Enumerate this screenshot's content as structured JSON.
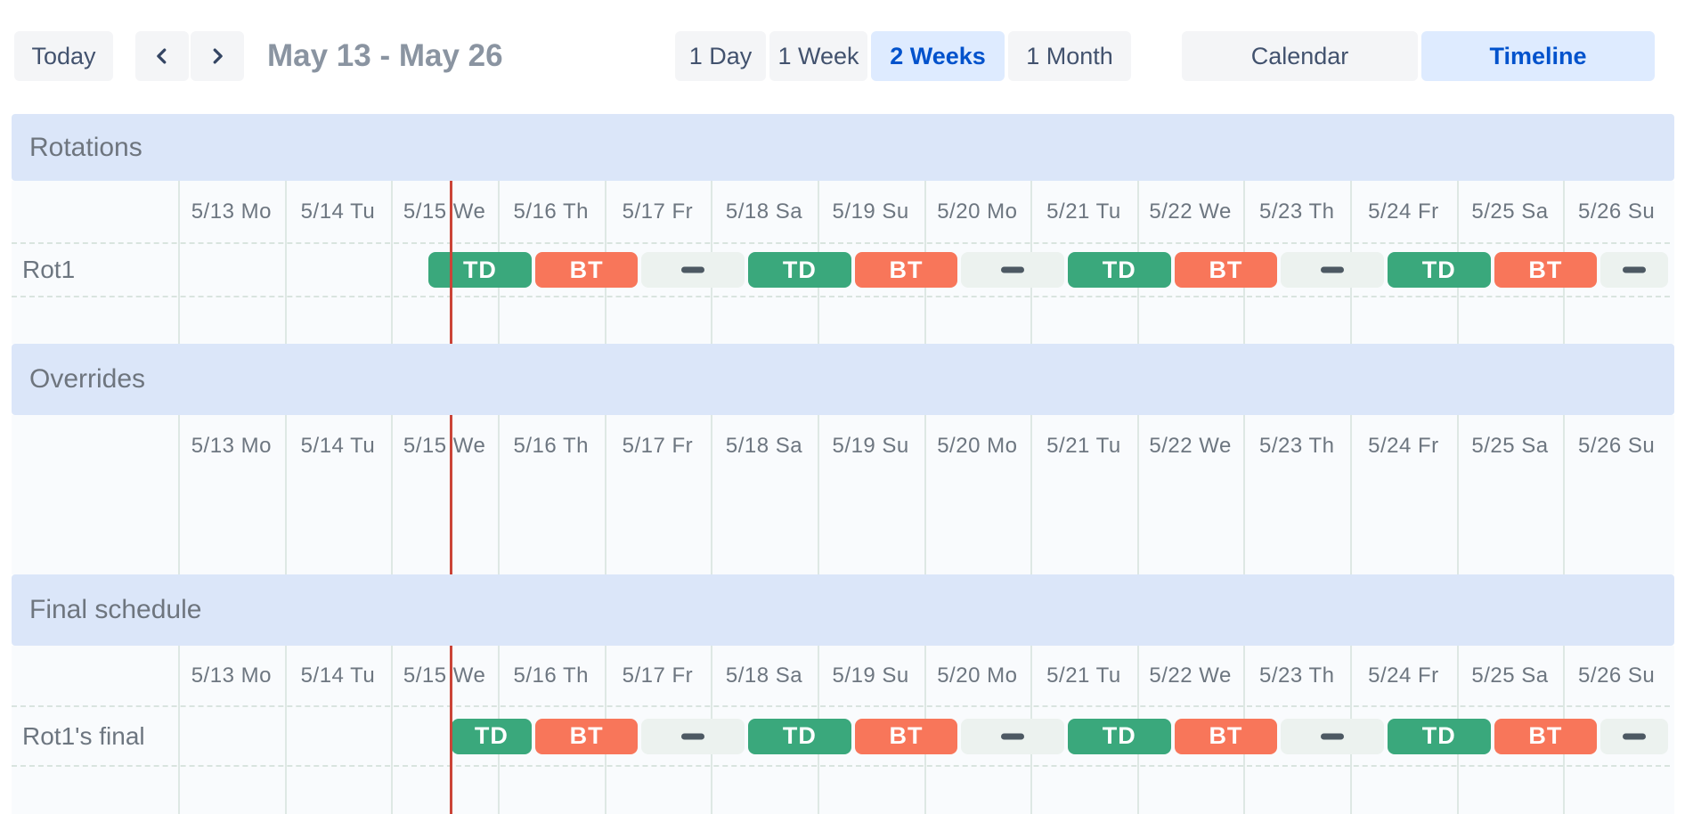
{
  "toolbar": {
    "today_label": "Today",
    "date_range": "May 13 - May 26",
    "view_options": [
      {
        "label": "1 Day",
        "selected": false
      },
      {
        "label": "1 Week",
        "selected": false
      },
      {
        "label": "2 Weeks",
        "selected": true
      },
      {
        "label": "1 Month",
        "selected": false
      }
    ],
    "mode_options": [
      {
        "label": "Calendar",
        "selected": false
      },
      {
        "label": "Timeline",
        "selected": true
      }
    ]
  },
  "timeline": {
    "days": [
      "5/13 Mo",
      "5/14 Tu",
      "5/15 We",
      "5/16 Th",
      "5/17 Fr",
      "5/18 Sa",
      "5/19 Su",
      "5/20 Mo",
      "5/21 Tu",
      "5/22 We",
      "5/23 Th",
      "5/24 Fr",
      "5/25 Sa",
      "5/26 Su"
    ],
    "total_days": 14,
    "now_marker_day": 2.55,
    "sections": [
      {
        "title": "Rotations",
        "rows": [
          {
            "label": "Rot1",
            "shifts": [
              {
                "type": "shift",
                "label": "TD",
                "color": "green",
                "start": 2.333,
                "end": 3.333
              },
              {
                "type": "shift",
                "label": "BT",
                "color": "orange",
                "start": 3.333,
                "end": 4.333
              },
              {
                "type": "gap",
                "start": 4.333,
                "end": 5.333
              },
              {
                "type": "shift",
                "label": "TD",
                "color": "green",
                "start": 5.333,
                "end": 6.333
              },
              {
                "type": "shift",
                "label": "BT",
                "color": "orange",
                "start": 6.333,
                "end": 7.333
              },
              {
                "type": "gap",
                "start": 7.333,
                "end": 8.333
              },
              {
                "type": "shift",
                "label": "TD",
                "color": "green",
                "start": 8.333,
                "end": 9.333
              },
              {
                "type": "shift",
                "label": "BT",
                "color": "orange",
                "start": 9.333,
                "end": 10.333
              },
              {
                "type": "gap",
                "start": 10.333,
                "end": 11.333
              },
              {
                "type": "shift",
                "label": "TD",
                "color": "green",
                "start": 11.333,
                "end": 12.333
              },
              {
                "type": "shift",
                "label": "BT",
                "color": "orange",
                "start": 12.333,
                "end": 13.333
              },
              {
                "type": "gap",
                "start": 13.333,
                "end": 14
              }
            ]
          }
        ]
      },
      {
        "title": "Overrides",
        "rows": []
      },
      {
        "title": "Final schedule",
        "rows": [
          {
            "label": "Rot1's final",
            "shifts": [
              {
                "type": "shift",
                "label": "TD",
                "color": "green",
                "start": 2.55,
                "end": 3.333
              },
              {
                "type": "shift",
                "label": "BT",
                "color": "orange",
                "start": 3.333,
                "end": 4.333
              },
              {
                "type": "gap",
                "start": 4.333,
                "end": 5.333
              },
              {
                "type": "shift",
                "label": "TD",
                "color": "green",
                "start": 5.333,
                "end": 6.333
              },
              {
                "type": "shift",
                "label": "BT",
                "color": "orange",
                "start": 6.333,
                "end": 7.333
              },
              {
                "type": "gap",
                "start": 7.333,
                "end": 8.333
              },
              {
                "type": "shift",
                "label": "TD",
                "color": "green",
                "start": 8.333,
                "end": 9.333
              },
              {
                "type": "shift",
                "label": "BT",
                "color": "orange",
                "start": 9.333,
                "end": 10.333
              },
              {
                "type": "gap",
                "start": 10.333,
                "end": 11.333
              },
              {
                "type": "shift",
                "label": "TD",
                "color": "green",
                "start": 11.333,
                "end": 12.333
              },
              {
                "type": "shift",
                "label": "BT",
                "color": "orange",
                "start": 12.333,
                "end": 13.333
              },
              {
                "type": "gap",
                "start": 13.333,
                "end": 14
              }
            ]
          }
        ]
      }
    ]
  },
  "colors": {
    "shift_green": "#3aa87c",
    "shift_orange": "#f8765a",
    "gap_track": "#ecf2ef",
    "gap_dash": "#4d5963",
    "now_line": "#cb4438",
    "section_band_bg": "#dbe6f9",
    "selected_bg": "#deebff",
    "selected_text": "#0052cc",
    "button_bg": "#f4f5f7",
    "button_text": "#42526e"
  }
}
